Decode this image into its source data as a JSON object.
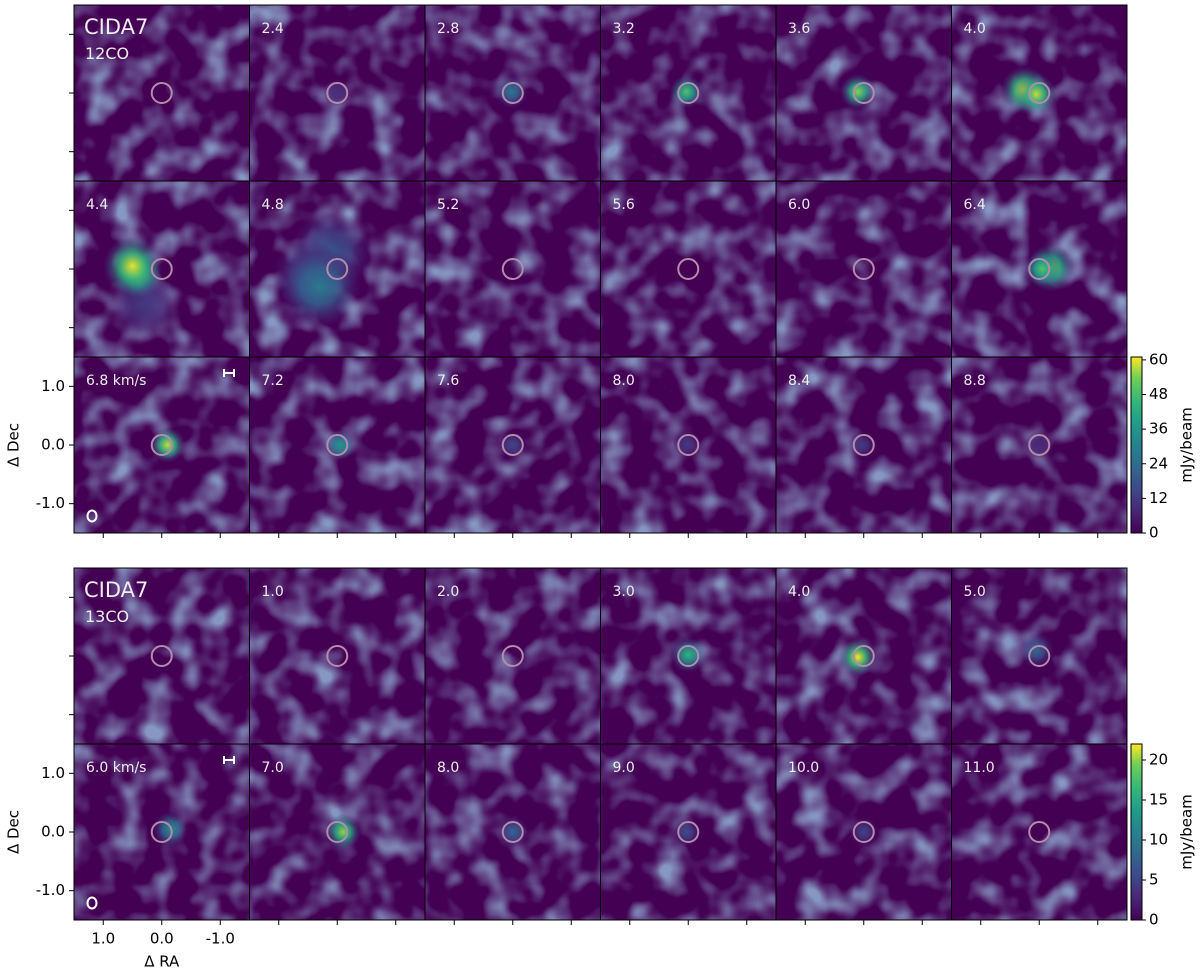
{
  "chart_data": [
    {
      "type": "channel_map",
      "source": "CIDA7",
      "line": "12CO",
      "ylabel": "Δ Dec",
      "xlim": [
        1.5,
        -1.5
      ],
      "ylim": [
        -1.5,
        1.5
      ],
      "xticks": [
        1,
        0,
        -1
      ],
      "yticks": [
        {
          "value": 1,
          "label": "1.0"
        },
        {
          "value": 0,
          "label": "0.0"
        },
        {
          "value": -1,
          "label": "-1.0"
        }
      ],
      "colormap": "viridis",
      "clim": [
        0,
        61
      ],
      "cticks": [
        0,
        12,
        24,
        36,
        48,
        60
      ],
      "colorbar_label": "mJy/beam",
      "columns": 6,
      "panels": [
        {
          "blobs": []
        },
        {
          "label": "2.4",
          "blobs": [
            {
              "ra": 0,
              "dec": 0,
              "peak": 10,
              "size": 0.12
            }
          ]
        },
        {
          "label": "2.8",
          "blobs": [
            {
              "ra": 0.02,
              "dec": 0.02,
              "peak": 28,
              "size": 0.14
            }
          ]
        },
        {
          "label": "3.2",
          "blobs": [
            {
              "ra": 0.03,
              "dec": 0.02,
              "peak": 50,
              "size": 0.14
            }
          ]
        },
        {
          "label": "3.6",
          "blobs": [
            {
              "ra": 0.1,
              "dec": 0.02,
              "peak": 55,
              "size": 0.15
            }
          ]
        },
        {
          "label": "4.0",
          "blobs": [
            {
              "ra": 0.25,
              "dec": 0.05,
              "peak": 60,
              "size": 0.2
            },
            {
              "ra": 0.05,
              "dec": -0.02,
              "peak": 58,
              "size": 0.17
            }
          ]
        },
        {
          "label": "4.4",
          "blobs": [
            {
              "ra": 0.3,
              "dec": -0.6,
              "peak": 12,
              "size": 0.3
            },
            {
              "ra": 0.4,
              "dec": -0.1,
              "peak": 55,
              "size": 0.2
            },
            {
              "ra": 0.5,
              "dec": 0.05,
              "peak": 60,
              "size": 0.25
            }
          ]
        },
        {
          "label": "4.8",
          "blobs": [
            {
              "ra": 0.1,
              "dec": 0.3,
              "peak": 18,
              "size": 0.35
            },
            {
              "ra": 0.5,
              "dec": -0.1,
              "peak": 16,
              "size": 0.3
            },
            {
              "ra": 0.3,
              "dec": -0.3,
              "peak": 28,
              "size": 0.35
            }
          ]
        },
        {
          "label": "5.2",
          "blobs": []
        },
        {
          "label": "5.6",
          "blobs": []
        },
        {
          "label": "6.0",
          "blobs": []
        },
        {
          "label": "6.4",
          "blobs": [
            {
              "ra": -0.2,
              "dec": 0.02,
              "peak": 55,
              "size": 0.2
            },
            {
              "ra": -0.05,
              "dec": 0,
              "peak": 50,
              "size": 0.15
            }
          ]
        },
        {
          "label": "6.8 km/s",
          "blobs": [
            {
              "ra": -0.1,
              "dec": 0,
              "peak": 58,
              "size": 0.15
            }
          ]
        },
        {
          "label": "7.2",
          "blobs": [
            {
              "ra": -0.05,
              "dec": 0,
              "peak": 36,
              "size": 0.13
            }
          ]
        },
        {
          "label": "7.6",
          "blobs": [
            {
              "ra": 0,
              "dec": 0,
              "peak": 15,
              "size": 0.12
            }
          ]
        },
        {
          "label": "8.0",
          "blobs": [
            {
              "ra": 0.02,
              "dec": 0.02,
              "peak": 12,
              "size": 0.12
            }
          ]
        },
        {
          "label": "8.4",
          "blobs": [
            {
              "ra": 0.03,
              "dec": 0,
              "peak": 12,
              "size": 0.12
            }
          ]
        },
        {
          "label": "8.8",
          "blobs": [
            {
              "ra": 0.02,
              "dec": 0,
              "peak": 8,
              "size": 0.12
            }
          ]
        }
      ]
    },
    {
      "type": "channel_map",
      "source": "CIDA7",
      "line": "13CO",
      "xlabel": "Δ RA",
      "ylabel": "Δ Dec",
      "xlim": [
        1.5,
        -1.5
      ],
      "ylim": [
        -1.5,
        1.5
      ],
      "xticks": [
        {
          "value": 1,
          "label": "1.0"
        },
        {
          "value": 0,
          "label": "0.0"
        },
        {
          "value": -1,
          "label": "-1.0"
        }
      ],
      "yticks": [
        {
          "value": 1,
          "label": "1.0"
        },
        {
          "value": 0,
          "label": "0.0"
        },
        {
          "value": -1,
          "label": "-1.0"
        }
      ],
      "colormap": "viridis",
      "clim": [
        0,
        22
      ],
      "cticks": [
        0,
        5,
        10,
        15,
        20
      ],
      "colorbar_label": "mJy/beam",
      "columns": 6,
      "panels": [
        {
          "blobs": []
        },
        {
          "label": "1.0",
          "blobs": []
        },
        {
          "label": "2.0",
          "blobs": []
        },
        {
          "label": "3.0",
          "blobs": [
            {
              "ra": 0,
              "dec": 0.02,
              "peak": 16,
              "size": 0.15
            }
          ]
        },
        {
          "label": "4.0",
          "blobs": [
            {
              "ra": 0.1,
              "dec": -0.02,
              "peak": 22,
              "size": 0.16
            }
          ]
        },
        {
          "label": "5.0",
          "blobs": [
            {
              "ra": 0.05,
              "dec": 0.1,
              "peak": 8,
              "size": 0.15
            }
          ]
        },
        {
          "label": "6.0 km/s",
          "blobs": [
            {
              "ra": -0.15,
              "dec": 0.05,
              "peak": 12,
              "size": 0.15
            }
          ]
        },
        {
          "label": "7.0",
          "blobs": [
            {
              "ra": -0.1,
              "dec": 0,
              "peak": 20,
              "size": 0.15
            }
          ]
        },
        {
          "label": "8.0",
          "blobs": [
            {
              "ra": 0,
              "dec": 0,
              "peak": 8,
              "size": 0.13
            }
          ]
        },
        {
          "label": "9.0",
          "blobs": [
            {
              "ra": 0.03,
              "dec": 0,
              "peak": 6,
              "size": 0.12
            }
          ]
        },
        {
          "label": "10.0",
          "blobs": [
            {
              "ra": 0,
              "dec": 0,
              "peak": 5,
              "size": 0.12
            }
          ]
        },
        {
          "label": "11.0",
          "blobs": []
        }
      ]
    }
  ]
}
